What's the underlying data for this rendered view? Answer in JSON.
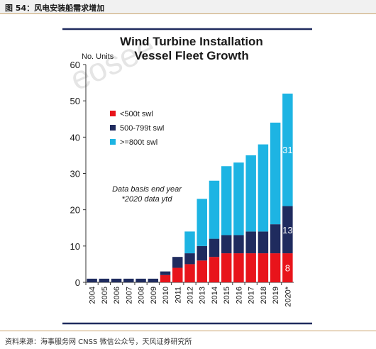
{
  "figure_label": "图 54：风电安装船需求增加",
  "source_note": "资料来源：海事服务网 CNSS 微信公众号，天风证券研究所",
  "watermark_text": "eosee",
  "colors": {
    "lt500": "#e8141b",
    "mid": "#1f2b5e",
    "gt800": "#1db4e3",
    "frame_rule": "#1f2b5e",
    "header_rule": "#c9a36b"
  },
  "chart_data": {
    "type": "bar",
    "stacked": true,
    "title": "Wind Turbine Installation Vessel Fleet Growth",
    "title_lines": [
      "Wind Turbine Installation",
      "Vessel Fleet Growth"
    ],
    "ylabel": "No. Units",
    "ylim": [
      0,
      60
    ],
    "yticks": [
      0,
      10,
      20,
      30,
      40,
      50,
      60
    ],
    "grid": false,
    "legend_position": "upper-left",
    "categories": [
      "2004",
      "2005",
      "2006",
      "2007",
      "2008",
      "2009",
      "2010",
      "2011",
      "2012",
      "2013",
      "2014",
      "2015",
      "2016",
      "2017",
      "2018",
      "2019",
      "2020*"
    ],
    "series": [
      {
        "name": "<500t swl",
        "color": "#e8141b",
        "values": [
          0,
          0,
          0,
          0,
          0,
          0,
          2,
          4,
          5,
          6,
          7,
          8,
          8,
          8,
          8,
          8,
          8
        ]
      },
      {
        "name": "500-799t swl",
        "color": "#1f2b5e",
        "values": [
          1,
          1,
          1,
          1,
          1,
          1,
          1,
          3,
          3,
          4,
          5,
          5,
          5,
          6,
          6,
          8,
          13
        ]
      },
      {
        "name": ">=800t swl",
        "color": "#1db4e3",
        "values": [
          0,
          0,
          0,
          0,
          0,
          0,
          0,
          0,
          6,
          13,
          16,
          19,
          20,
          21,
          24,
          28,
          31
        ]
      }
    ],
    "bar_labels": [
      {
        "category": "2020*",
        "series": "<500t swl",
        "text": "8"
      },
      {
        "category": "2020*",
        "series": "500-799t swl",
        "text": "13"
      },
      {
        "category": "2020*",
        "series": ">=800t swl",
        "text": "31"
      }
    ],
    "annotation_lines": [
      "Data basis end year",
      "*2020 data ytd"
    ]
  }
}
